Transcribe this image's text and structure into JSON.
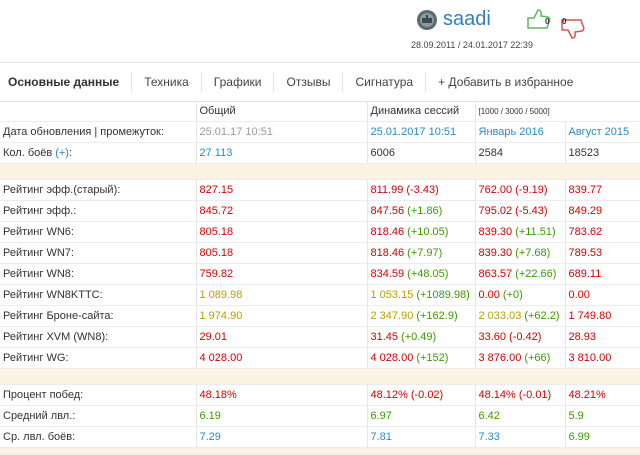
{
  "header": {
    "username": "saadi",
    "dates": "28.09.2011 / 24.01.2017 22:39",
    "likes": "0",
    "dislikes": "0"
  },
  "tabs": [
    "Основные данные",
    "Техника",
    "Графики",
    "Отзывы",
    "Сигнатура",
    "+ Добавить в избранное"
  ],
  "table": {
    "columns": [
      "Общий",
      "Динамика сессий",
      "[1000 / 3000 / 5000]"
    ],
    "groups": [
      [
        {
          "label": "Дата обновления | промежуток:",
          "cells": [
            {
              "value": "25.01.17 10:51",
              "color": "#9a9a9a"
            },
            {
              "value": "25.01.2017 10:51",
              "color": "#2a8ac8"
            },
            {
              "value": "Январь 2016",
              "color": "#2a8ac8"
            },
            {
              "value": "Август 2015",
              "color": "#2a8ac8"
            }
          ]
        },
        {
          "label": "Кол. боёв",
          "link": "(+)",
          "tail": ":",
          "cells": [
            {
              "value": "27 113",
              "color": "#2a8ac8"
            },
            {
              "value": "6006",
              "color": "#333333"
            },
            {
              "value": "2584",
              "color": "#333333"
            },
            {
              "value": "18523",
              "color": "#333333"
            }
          ]
        }
      ],
      [
        {
          "label": "Рейтинг эфф.(старый):",
          "cells": [
            {
              "value": "827.15",
              "color": "#d40000"
            },
            {
              "value": "811.99",
              "color": "#d40000",
              "delta": "(-3.43)",
              "delta_color": "#d40000"
            },
            {
              "value": "762.00",
              "color": "#d40000",
              "delta": "(-9.19)",
              "delta_color": "#d40000"
            },
            {
              "value": "839.77",
              "color": "#d40000"
            }
          ]
        },
        {
          "label": "Рейтинг эфф.:",
          "cells": [
            {
              "value": "845.72",
              "color": "#d40000"
            },
            {
              "value": "847.56",
              "color": "#d40000",
              "delta": "(+1.86)",
              "delta_color": "#3c9a00"
            },
            {
              "value": "795.02",
              "color": "#d40000",
              "delta": "(-5.43)",
              "delta_color": "#d40000"
            },
            {
              "value": "849.29",
              "color": "#d40000"
            }
          ]
        },
        {
          "label": "Рейтинг WN6:",
          "cells": [
            {
              "value": "805.18",
              "color": "#d40000"
            },
            {
              "value": "818.46",
              "color": "#d40000",
              "delta": "(+10.05)",
              "delta_color": "#3c9a00"
            },
            {
              "value": "839.30",
              "color": "#d40000",
              "delta": "(+11.51)",
              "delta_color": "#3c9a00"
            },
            {
              "value": "783.62",
              "color": "#d40000"
            }
          ]
        },
        {
          "label": "Рейтинг WN7:",
          "cells": [
            {
              "value": "805.18",
              "color": "#d40000"
            },
            {
              "value": "818.46",
              "color": "#d40000",
              "delta": "(+7.97)",
              "delta_color": "#3c9a00"
            },
            {
              "value": "839.30",
              "color": "#d40000",
              "delta": "(+7.68)",
              "delta_color": "#3c9a00"
            },
            {
              "value": "789.53",
              "color": "#d40000"
            }
          ]
        },
        {
          "label": "Рейтинг WN8:",
          "cells": [
            {
              "value": "759.82",
              "color": "#d40000"
            },
            {
              "value": "834.59",
              "color": "#d40000",
              "delta": "(+48.05)",
              "delta_color": "#3c9a00"
            },
            {
              "value": "863.57",
              "color": "#d40000",
              "delta": "(+22.66)",
              "delta_color": "#3c9a00"
            },
            {
              "value": "689.11",
              "color": "#d40000"
            }
          ]
        },
        {
          "label": "Рейтинг WN8KTTC:",
          "cells": [
            {
              "value": "1 089.98",
              "color": "#b5a000"
            },
            {
              "value": "1 053.15",
              "color": "#b5a000",
              "delta": "(+1089.98)",
              "delta_color": "#3c9a00"
            },
            {
              "value": "0.00",
              "color": "#d40000",
              "delta": "(+0)",
              "delta_color": "#3c9a00"
            },
            {
              "value": "0.00",
              "color": "#d40000"
            }
          ]
        },
        {
          "label": "Рейтинг Броне-сайта:",
          "cells": [
            {
              "value": "1 974.90",
              "color": "#b5a000"
            },
            {
              "value": "2 347.90",
              "color": "#b5a000",
              "delta": "(+162.9)",
              "delta_color": "#3c9a00"
            },
            {
              "value": "2 033.03",
              "color": "#b5a000",
              "delta": "(+62.2)",
              "delta_color": "#3c9a00"
            },
            {
              "value": "1 749.80",
              "color": "#d40000"
            }
          ]
        },
        {
          "label": "Рейтинг XVM (WN8):",
          "cells": [
            {
              "value": "29.01",
              "color": "#d40000"
            },
            {
              "value": "31.45",
              "color": "#d40000",
              "delta": "(+0.49)",
              "delta_color": "#3c9a00"
            },
            {
              "value": "33.60",
              "color": "#d40000",
              "delta": "(-0.42)",
              "delta_color": "#d40000"
            },
            {
              "value": "28.93",
              "color": "#d40000"
            }
          ]
        },
        {
          "label": "Рейтинг WG:",
          "cells": [
            {
              "value": "4 028.00",
              "color": "#d40000"
            },
            {
              "value": "4 028.00",
              "color": "#d40000",
              "delta": "(+152)",
              "delta_color": "#3c9a00"
            },
            {
              "value": "3 876.00",
              "color": "#d40000",
              "delta": "(+66)",
              "delta_color": "#3c9a00"
            },
            {
              "value": "3 810.00",
              "color": "#d40000"
            }
          ]
        }
      ],
      [
        {
          "label": "Процент побед:",
          "cells": [
            {
              "value": "48.18%",
              "color": "#d40000"
            },
            {
              "value": "48.12%",
              "color": "#d40000",
              "delta": "(-0.02)",
              "delta_color": "#d40000"
            },
            {
              "value": "48.14%",
              "color": "#d40000",
              "delta": "(-0.01)",
              "delta_color": "#d40000"
            },
            {
              "value": "48.21%",
              "color": "#d40000"
            }
          ]
        },
        {
          "label": "Средний лвл.:",
          "cells": [
            {
              "value": "6.19",
              "color": "#3c9a00"
            },
            {
              "value": "6.97",
              "color": "#3c9a00"
            },
            {
              "value": "6.42",
              "color": "#3c9a00"
            },
            {
              "value": "5.9",
              "color": "#3c9a00"
            }
          ]
        },
        {
          "label": "Ср. лвл. боёв:",
          "cells": [
            {
              "value": "7.29",
              "color": "#2a8ac8"
            },
            {
              "value": "7.81",
              "color": "#2a8ac8"
            },
            {
              "value": "7.33",
              "color": "#2a8ac8"
            },
            {
              "value": "6.99",
              "color": "#3c9a00"
            }
          ]
        }
      ]
    ]
  }
}
